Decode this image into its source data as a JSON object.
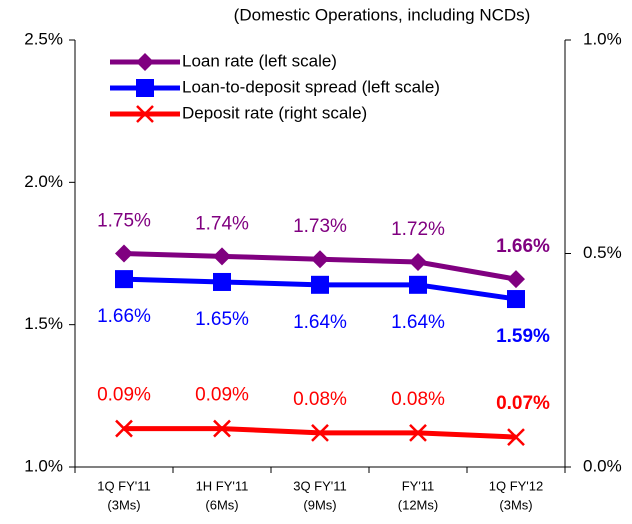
{
  "chart_data": {
    "type": "line",
    "subtitle": "(Domestic Operations, including NCDs)",
    "categories": [
      [
        "1Q FY'11",
        "(3Ms)"
      ],
      [
        "1H FY'11",
        "(6Ms)"
      ],
      [
        "3Q FY'11",
        "(9Ms)"
      ],
      [
        "FY'11",
        "(12Ms)"
      ],
      [
        "1Q FY'12",
        "(3Ms)"
      ]
    ],
    "ylim": [
      1.0,
      2.5
    ],
    "yticks": [
      {
        "value": 1.0,
        "label": "1.0%"
      },
      {
        "value": 1.5,
        "label": "1.5%"
      },
      {
        "value": 2.0,
        "label": "2.0%"
      },
      {
        "value": 2.5,
        "label": "2.5%"
      }
    ],
    "y2lim": [
      0.0,
      1.0
    ],
    "y2ticks": [
      {
        "value": 0.0,
        "label": "0.0%"
      },
      {
        "value": 0.5,
        "label": "0.5%"
      },
      {
        "value": 1.0,
        "label": "1.0%"
      }
    ],
    "grid": false,
    "legend": "upper left",
    "series": [
      {
        "name": "Loan rate (left scale)",
        "color": "#800080",
        "marker": "diamond",
        "values": [
          1.75,
          1.74,
          1.73,
          1.72,
          1.66
        ],
        "value_labels": [
          "1.75%",
          "1.74%",
          "1.73%",
          "1.72%",
          "1.66%"
        ]
      },
      {
        "name": "Loan-to-deposit spread (left scale)",
        "color": "#0000ff",
        "marker": "square",
        "values": [
          1.66,
          1.65,
          1.64,
          1.64,
          1.59
        ],
        "value_labels": [
          "1.66%",
          "1.65%",
          "1.64%",
          "1.64%",
          "1.59%"
        ]
      },
      {
        "name": "Deposit rate (right scale)",
        "color": "#ff0000",
        "marker": "x",
        "axis": "y2",
        "values": [
          0.09,
          0.09,
          0.08,
          0.08,
          0.07
        ],
        "value_labels": [
          "0.09%",
          "0.09%",
          "0.08%",
          "0.08%",
          "0.07%"
        ]
      }
    ]
  }
}
